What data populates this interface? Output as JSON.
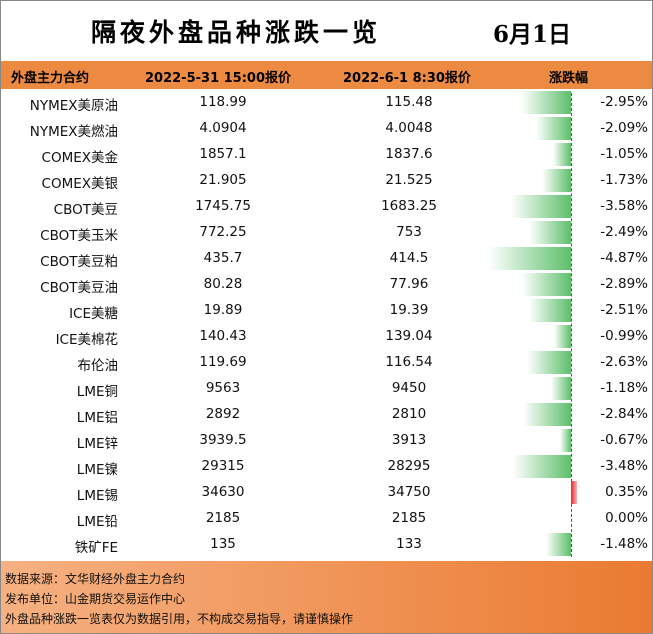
{
  "header": {
    "title": "隔夜外盘品种涨跌一览",
    "date": "6月1日"
  },
  "table": {
    "columns": [
      "外盘主力合约",
      "2022-5-31 15:00报价",
      "2022-6-1 8:30报价",
      "涨跌幅"
    ],
    "rows": [
      [
        "NYMEX美原油",
        "118.99",
        "115.48",
        "-2.95%"
      ],
      [
        "NYMEX美燃油",
        "4.0904",
        "4.0048",
        "-2.09%"
      ],
      [
        "COMEX美金",
        "1857.1",
        "1837.6",
        "-1.05%"
      ],
      [
        "COMEX美银",
        "21.905",
        "21.525",
        "-1.73%"
      ],
      [
        "CBOT美豆",
        "1745.75",
        "1683.25",
        "-3.58%"
      ],
      [
        "CBOT美玉米",
        "772.25",
        "753",
        "-2.49%"
      ],
      [
        "CBOT美豆粕",
        "435.7",
        "414.5",
        "-4.87%"
      ],
      [
        "CBOT美豆油",
        "80.28",
        "77.96",
        "-2.89%"
      ],
      [
        "ICE美糖",
        "19.89",
        "19.39",
        "-2.51%"
      ],
      [
        "ICE美棉花",
        "140.43",
        "139.04",
        "-0.99%"
      ],
      [
        "布伦油",
        "119.69",
        "116.54",
        "-2.63%"
      ],
      [
        "LME铜",
        "9563",
        "9450",
        "-1.18%"
      ],
      [
        "LME铝",
        "2892",
        "2810",
        "-2.84%"
      ],
      [
        "LME锌",
        "3939.5",
        "3913",
        "-0.67%"
      ],
      [
        "LME镍",
        "29315",
        "28295",
        "-3.48%"
      ],
      [
        "LME锡",
        "34630",
        "34750",
        "0.35%"
      ],
      [
        "LME铅",
        "2185",
        "2185",
        "0.00%"
      ],
      [
        "铁矿FE",
        "135",
        "133",
        "-1.48%"
      ]
    ]
  },
  "footer": {
    "lines": [
      "数据来源：文华财经外盘主力合约",
      "发布单位：山金期货交易运作中心",
      "外盘品种涨跌一览表仅为数据引用，不构成交易指导，请谨慎操作"
    ]
  }
}
